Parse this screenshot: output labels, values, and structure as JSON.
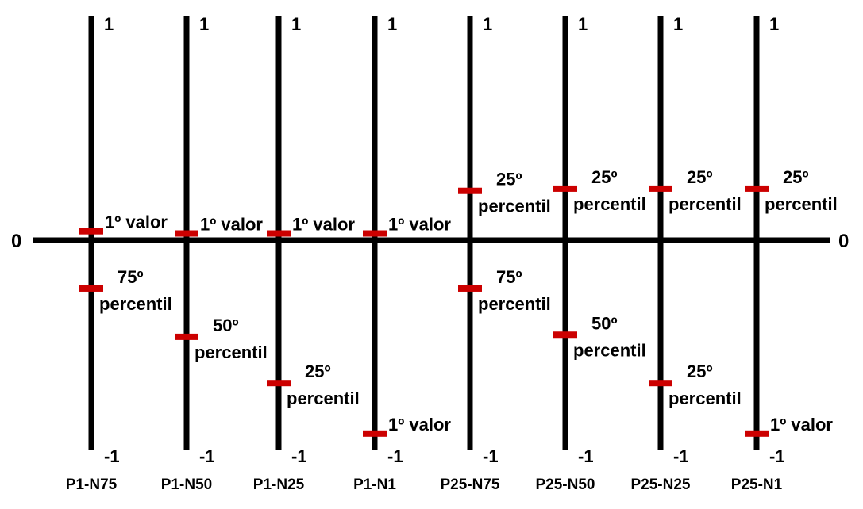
{
  "diagram": {
    "colors": {
      "axis": "#000000",
      "marker": "#cc0000",
      "background": "#ffffff"
    },
    "zero_label_left": "0",
    "zero_label_right": "0",
    "top_label": "1",
    "bottom_label": "-1",
    "columns": [
      {
        "name": "P1-N75",
        "markers": [
          {
            "value": 0.04,
            "lines": [
              "1º valor"
            ]
          },
          {
            "value": -0.23,
            "lines": [
              "75º",
              "percentil"
            ]
          }
        ]
      },
      {
        "name": "P1-N50",
        "markers": [
          {
            "value": 0.03,
            "lines": [
              "1º valor"
            ]
          },
          {
            "value": -0.46,
            "lines": [
              "50º",
              "percentil"
            ]
          }
        ]
      },
      {
        "name": "P1-N25",
        "markers": [
          {
            "value": 0.03,
            "lines": [
              "1º valor"
            ]
          },
          {
            "value": -0.68,
            "lines": [
              "25º",
              "percentil"
            ]
          }
        ]
      },
      {
        "name": "P1-N1",
        "markers": [
          {
            "value": 0.03,
            "lines": [
              "1º valor"
            ]
          },
          {
            "value": -0.92,
            "lines": [
              "1º valor"
            ]
          }
        ]
      },
      {
        "name": "P25-N75",
        "markers": [
          {
            "value": 0.22,
            "lines": [
              "25º",
              "percentil"
            ]
          },
          {
            "value": -0.23,
            "lines": [
              "75º",
              "percentil"
            ]
          }
        ]
      },
      {
        "name": "P25-N50",
        "markers": [
          {
            "value": 0.23,
            "lines": [
              "25º",
              "percentil"
            ]
          },
          {
            "value": -0.45,
            "lines": [
              "50º",
              "percentil"
            ]
          }
        ]
      },
      {
        "name": "P25-N25",
        "markers": [
          {
            "value": 0.23,
            "lines": [
              "25º",
              "percentil"
            ]
          },
          {
            "value": -0.68,
            "lines": [
              "25º",
              "percentil"
            ]
          }
        ]
      },
      {
        "name": "P25-N1",
        "markers": [
          {
            "value": 0.23,
            "lines": [
              "25º",
              "percentil"
            ]
          },
          {
            "value": -0.92,
            "lines": [
              "1º valor"
            ]
          }
        ]
      }
    ]
  }
}
